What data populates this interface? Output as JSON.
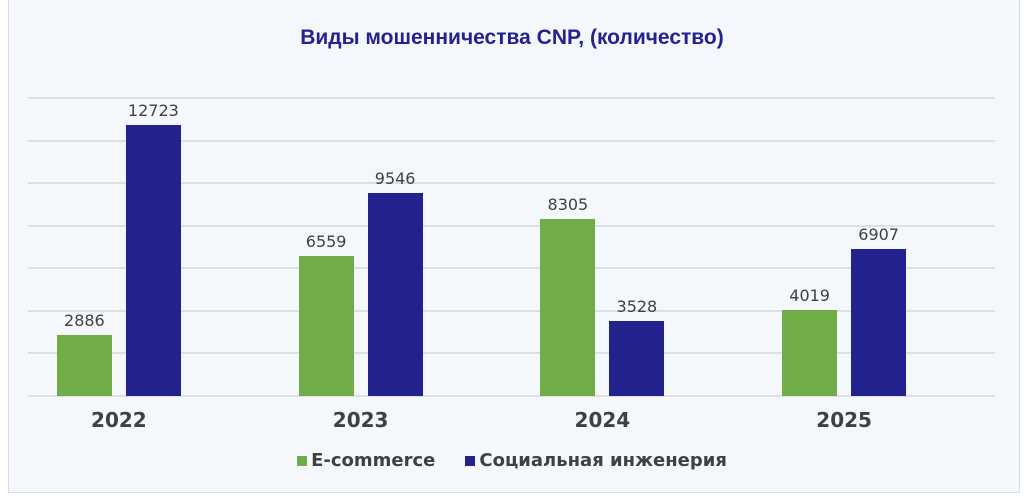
{
  "chart_data": {
    "type": "bar",
    "title": "Виды мошенничества CNP, (количество)",
    "categories": [
      "2022",
      "2023",
      "2024",
      "2025"
    ],
    "series": [
      {
        "name": "E-commerce",
        "color": "#70ad47",
        "values": [
          2886,
          6559,
          8305,
          4019
        ]
      },
      {
        "name": "Социальная инженерия",
        "color": "#22228f",
        "values": [
          12723,
          9546,
          3528,
          6907
        ]
      }
    ],
    "xlabel": "",
    "ylabel": "",
    "ylim": [
      0,
      14000
    ],
    "grid": true,
    "gridline_step": 2000,
    "y_tick_labels_shown": false,
    "data_labels": true,
    "legend_position": "bottom"
  },
  "labels": {
    "title": "Виды мошенничества CNP, (количество)",
    "legend": [
      "E-commerce",
      "Социальная инженерия"
    ]
  }
}
